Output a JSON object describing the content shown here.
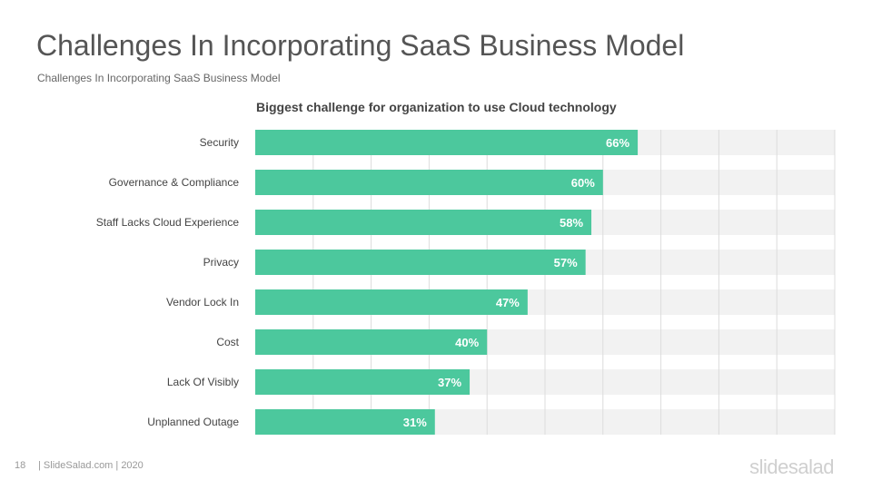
{
  "slide": {
    "title": "Challenges In Incorporating SaaS Business Model",
    "subtitle": "Challenges In Incorporating  SaaS  Business  Model"
  },
  "footer": {
    "page_number": "18",
    "text": "| SlideSalad.com | 2020",
    "brand": "slidesalad"
  },
  "chart_data": {
    "type": "bar",
    "orientation": "horizontal",
    "title": "Biggest challenge for organization to use Cloud technology",
    "categories": [
      "Security",
      "Governance & Compliance",
      "Staff Lacks Cloud Experience",
      "Privacy",
      "Vendor Lock In",
      "Cost",
      "Lack Of Visibly",
      "Unplanned Outage"
    ],
    "values": [
      66,
      60,
      58,
      57,
      47,
      40,
      37,
      31
    ],
    "data_labels": [
      "66%",
      "60%",
      "58%",
      "57%",
      "47%",
      "40%",
      "37%",
      "31%"
    ],
    "xlim": [
      0,
      100
    ],
    "grid": true,
    "bar_color": "#4cc89d",
    "track_color": "#f2f2f2"
  }
}
